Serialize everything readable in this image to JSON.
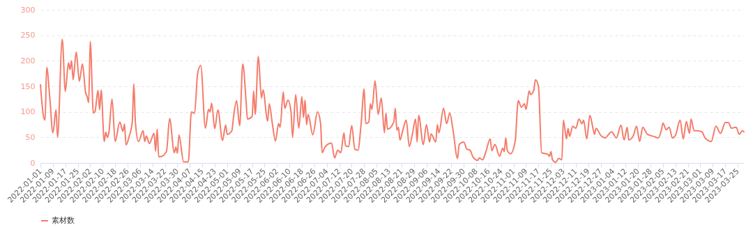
{
  "chart_data": {
    "type": "line",
    "x": [
      "2022-01-01",
      "2022-01-03",
      "2022-01-04",
      "2022-01-05",
      "2022-01-07",
      "2022-01-09",
      "2022-01-11",
      "2022-01-12",
      "2022-01-15",
      "2022-01-17",
      "2022-01-19",
      "2022-01-20",
      "2022-01-21",
      "2022-01-22",
      "2022-01-24",
      "2022-01-26",
      "2022-01-28",
      "2022-01-30",
      "2022-01-31",
      "2022-02-01",
      "2022-02-02",
      "2022-02-04",
      "2022-02-05",
      "2022-02-07",
      "2022-02-08",
      "2022-02-09",
      "2022-02-11",
      "2022-02-12",
      "2022-02-13",
      "2022-02-14",
      "2022-02-16",
      "2022-02-18",
      "2022-02-21",
      "2022-02-23",
      "2022-02-24",
      "2022-02-25",
      "2022-02-27",
      "2022-03-01",
      "2022-03-02",
      "2022-03-03",
      "2022-03-05",
      "2022-03-08",
      "2022-03-09",
      "2022-03-10",
      "2022-03-12",
      "2022-03-15",
      "2022-03-16",
      "2022-03-17",
      "2022-03-18",
      "2022-03-20",
      "2022-03-23",
      "2022-03-25",
      "2022-03-28",
      "2022-03-29",
      "2022-03-30",
      "2022-03-31",
      "2022-04-03",
      "2022-04-06",
      "2022-04-08",
      "2022-04-10",
      "2022-04-12",
      "2022-04-14",
      "2022-04-17",
      "2022-04-19",
      "2022-04-20",
      "2022-04-21",
      "2022-04-23",
      "2022-04-25",
      "2022-04-28",
      "2022-04-30",
      "2022-05-01",
      "2022-05-04",
      "2022-05-05",
      "2022-05-07",
      "2022-05-09",
      "2022-05-11",
      "2022-05-13",
      "2022-05-14",
      "2022-05-17",
      "2022-05-18",
      "2022-05-19",
      "2022-05-21",
      "2022-05-23",
      "2022-05-24",
      "2022-05-27",
      "2022-05-28",
      "2022-05-30",
      "2022-06-01",
      "2022-06-03",
      "2022-06-04",
      "2022-06-06",
      "2022-06-07",
      "2022-06-09",
      "2022-06-11",
      "2022-06-12",
      "2022-06-14",
      "2022-06-16",
      "2022-06-18",
      "2022-06-19",
      "2022-06-20",
      "2022-06-21",
      "2022-06-22",
      "2022-06-25",
      "2022-06-28",
      "2022-06-30",
      "2022-07-01",
      "2022-07-03",
      "2022-07-07",
      "2022-07-09",
      "2022-07-11",
      "2022-07-13",
      "2022-07-15",
      "2022-07-16",
      "2022-07-18",
      "2022-07-20",
      "2022-07-22",
      "2022-07-24",
      "2022-07-26",
      "2022-07-28",
      "2022-07-29",
      "2022-07-31",
      "2022-08-01",
      "2022-08-02",
      "2022-08-04",
      "2022-08-06",
      "2022-08-08",
      "2022-08-10",
      "2022-08-11",
      "2022-08-12",
      "2022-08-16",
      "2022-08-17",
      "2022-08-18",
      "2022-08-19",
      "2022-08-20",
      "2022-08-22",
      "2022-08-24",
      "2022-08-26",
      "2022-08-28",
      "2022-08-30",
      "2022-08-31",
      "2022-09-01",
      "2022-09-04",
      "2022-09-06",
      "2022-09-08",
      "2022-09-09",
      "2022-09-12",
      "2022-09-13",
      "2022-09-14",
      "2022-09-17",
      "2022-09-19",
      "2022-09-21",
      "2022-09-23",
      "2022-09-26",
      "2022-09-27",
      "2022-09-30",
      "2022-10-02",
      "2022-10-04",
      "2022-10-06",
      "2022-10-09",
      "2022-10-10",
      "2022-10-12",
      "2022-10-14",
      "2022-10-17",
      "2022-10-18",
      "2022-10-20",
      "2022-10-23",
      "2022-10-25",
      "2022-10-26",
      "2022-10-27",
      "2022-10-28",
      "2022-10-30",
      "2022-11-02",
      "2022-11-04",
      "2022-11-06",
      "2022-11-08",
      "2022-11-09",
      "2022-11-11",
      "2022-11-12",
      "2022-11-14",
      "2022-11-15",
      "2022-11-17",
      "2022-11-19",
      "2022-11-23",
      "2022-11-24",
      "2022-11-25",
      "2022-11-26",
      "2022-11-28",
      "2022-11-30",
      "2022-12-02",
      "2022-12-03",
      "2022-12-05",
      "2022-12-06",
      "2022-12-07",
      "2022-12-09",
      "2022-12-11",
      "2022-12-13",
      "2022-12-15",
      "2022-12-16",
      "2022-12-18",
      "2022-12-20",
      "2022-12-22",
      "2022-12-23",
      "2022-12-24",
      "2022-12-27",
      "2022-12-30",
      "2023-01-01",
      "2023-01-03",
      "2023-01-06",
      "2023-01-09",
      "2023-01-11",
      "2023-01-13",
      "2023-01-14",
      "2023-01-17",
      "2023-01-19",
      "2023-01-21",
      "2023-01-23",
      "2023-01-26",
      "2023-01-30",
      "2023-02-02",
      "2023-02-04",
      "2023-02-05",
      "2023-02-07",
      "2023-02-09",
      "2023-02-11",
      "2023-02-13",
      "2023-02-16",
      "2023-02-18",
      "2023-02-20",
      "2023-02-22",
      "2023-02-23",
      "2023-02-25",
      "2023-02-27",
      "2023-03-02",
      "2023-03-04",
      "2023-03-08",
      "2023-03-11",
      "2023-03-14",
      "2023-03-17",
      "2023-03-19",
      "2023-03-21",
      "2023-03-24",
      "2023-03-26",
      "2023-03-28",
      "2023-03-29"
    ],
    "series": [
      {
        "name": "素材数",
        "color": "#f47c6a",
        "values": [
          153,
          91,
          84,
          187,
          128,
          59,
          104,
          50,
          242,
          140,
          196,
          183,
          200,
          163,
          217,
          160,
          194,
          138,
          130,
          118,
          238,
          98,
          100,
          142,
          104,
          143,
          42,
          60,
          50,
          60,
          125,
          42,
          80,
          62,
          76,
          35,
          52,
          80,
          155,
          80,
          42,
          63,
          42,
          53,
          38,
          58,
          23,
          66,
          12,
          13,
          23,
          87,
          20,
          31,
          19,
          55,
          2,
          2,
          100,
          97,
          175,
          191,
          68,
          105,
          100,
          117,
          67,
          104,
          44,
          74,
          56,
          63,
          88,
          122,
          73,
          194,
          127,
          86,
          91,
          141,
          95,
          209,
          127,
          143,
          82,
          116,
          77,
          43,
          77,
          70,
          139,
          107,
          123,
          100,
          50,
          134,
          68,
          130,
          89,
          123,
          75,
          95,
          55,
          100,
          77,
          20,
          32,
          39,
          10,
          25,
          20,
          59,
          34,
          32,
          73,
          27,
          25,
          75,
          145,
          77,
          80,
          116,
          105,
          161,
          95,
          127,
          59,
          98,
          66,
          80,
          107,
          64,
          70,
          45,
          66,
          84,
          32,
          57,
          86,
          41,
          93,
          36,
          75,
          41,
          57,
          41,
          75,
          59,
          107,
          77,
          98,
          66,
          9,
          36,
          41,
          27,
          25,
          11,
          5,
          10,
          6,
          20,
          47,
          24,
          36,
          13,
          29,
          22,
          49,
          24,
          18,
          42,
          122,
          109,
          116,
          105,
          141,
          134,
          143,
          163,
          150,
          20,
          17,
          13,
          22,
          6,
          1,
          9,
          6,
          84,
          47,
          68,
          52,
          72,
          68,
          86,
          77,
          84,
          47,
          93,
          68,
          56,
          68,
          54,
          49,
          56,
          61,
          49,
          74,
          45,
          70,
          45,
          54,
          72,
          42,
          70,
          56,
          52,
          49,
          65,
          78,
          65,
          70,
          49,
          54,
          84,
          47,
          81,
          58,
          86,
          63,
          63,
          61,
          49,
          42,
          72,
          58,
          79,
          79,
          68,
          70,
          56,
          63,
          61
        ]
      }
    ],
    "xlim": [
      "2022-01-01",
      "2023-03-29"
    ],
    "xticks": [
      "2022-01-01",
      "2022-01-09",
      "2022-01-17",
      "2022-01-25",
      "2022-02-02",
      "2022-02-10",
      "2022-02-18",
      "2022-02-26",
      "2022-03-06",
      "2022-03-14",
      "2022-03-22",
      "2022-03-30",
      "2022-04-07",
      "2022-04-15",
      "2022-04-23",
      "2022-05-01",
      "2022-05-09",
      "2022-05-17",
      "2022-05-25",
      "2022-06-02",
      "2022-06-10",
      "2022-06-18",
      "2022-06-26",
      "2022-07-04",
      "2022-07-12",
      "2022-07-20",
      "2022-07-28",
      "2022-08-05",
      "2022-08-13",
      "2022-08-21",
      "2022-08-29",
      "2022-09-06",
      "2022-09-14",
      "2022-09-22",
      "2022-09-30",
      "2022-10-08",
      "2022-10-16",
      "2022-10-24",
      "2022-11-01",
      "2022-11-09",
      "2022-11-17",
      "2022-11-25",
      "2022-12-03",
      "2022-12-11",
      "2022-12-19",
      "2022-12-27",
      "2023-01-04",
      "2023-01-12",
      "2023-01-20",
      "2023-01-28",
      "2023-02-05",
      "2023-02-13",
      "2023-02-21",
      "2023-03-01",
      "2023-03-09",
      "2023-03-17",
      "2023-03-25"
    ],
    "ylim": [
      0,
      300
    ],
    "yticks": [
      0,
      50,
      100,
      150,
      200,
      250,
      300
    ],
    "grid": "y",
    "legend": "bottom",
    "marker": "none",
    "line_style": "solid"
  }
}
